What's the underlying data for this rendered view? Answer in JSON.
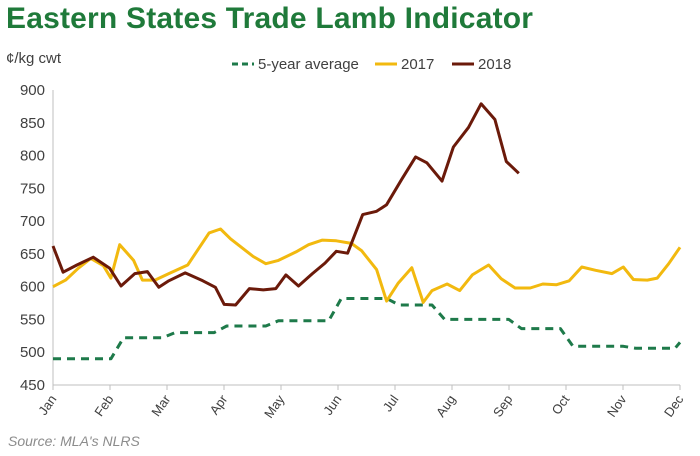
{
  "title": "Eastern States Trade Lamb Indicator",
  "source": "Source: MLA's NLRS",
  "colors": {
    "title": "#1f7a3a",
    "five_year": "#1e7a4a",
    "y2017": "#f2b90f",
    "y2018": "#6b1a0a"
  },
  "chart_data": {
    "type": "line",
    "ylabel": "¢/kg cwt",
    "ylim": [
      450,
      900
    ],
    "yticks": [
      450,
      500,
      550,
      600,
      650,
      700,
      750,
      800,
      850,
      900
    ],
    "xlim": [
      0,
      49.8
    ],
    "x_months": [
      "Jan",
      "Feb",
      "Mar",
      "Apr",
      "May",
      "Jun",
      "Jul",
      "Aug",
      "Sep",
      "Oct",
      "Nov",
      "Dec"
    ],
    "grid": false,
    "legend_position": "top",
    "series": [
      {
        "name": "5-year average",
        "style": "dashed",
        "color": "#1e7a4a",
        "points": [
          [
            0,
            490
          ],
          [
            4.6,
            490
          ],
          [
            5.6,
            522
          ],
          [
            8.7,
            522
          ],
          [
            9.7,
            530
          ],
          [
            12.8,
            530
          ],
          [
            13.8,
            540
          ],
          [
            16.9,
            540
          ],
          [
            17.9,
            548
          ],
          [
            21.9,
            548
          ],
          [
            22.9,
            582
          ],
          [
            26.5,
            582
          ],
          [
            27.5,
            572
          ],
          [
            30.1,
            572
          ],
          [
            31.1,
            550
          ],
          [
            36.2,
            550
          ],
          [
            37.2,
            536
          ],
          [
            40.3,
            536
          ],
          [
            41.3,
            509
          ],
          [
            45.3,
            509
          ],
          [
            46.3,
            506
          ],
          [
            49.4,
            506
          ],
          [
            49.8,
            515
          ]
        ]
      },
      {
        "name": "2017",
        "style": "solid",
        "color": "#f2b90f",
        "points": [
          [
            0,
            600
          ],
          [
            1,
            610
          ],
          [
            2,
            628
          ],
          [
            3,
            643
          ],
          [
            4,
            632
          ],
          [
            4.6,
            613
          ],
          [
            5.3,
            664
          ],
          [
            6.4,
            640
          ],
          [
            7.1,
            610
          ],
          [
            8.1,
            610
          ],
          [
            9.2,
            620
          ],
          [
            10.7,
            633
          ],
          [
            12.4,
            682
          ],
          [
            13.3,
            688
          ],
          [
            14.1,
            673
          ],
          [
            15.9,
            646
          ],
          [
            16.9,
            635
          ],
          [
            17.9,
            640
          ],
          [
            19.3,
            653
          ],
          [
            20.3,
            664
          ],
          [
            21.4,
            671
          ],
          [
            22.5,
            670
          ],
          [
            23.7,
            666
          ],
          [
            24.5,
            655
          ],
          [
            25.7,
            626
          ],
          [
            26.5,
            578
          ],
          [
            27.4,
            605
          ],
          [
            28.5,
            629
          ],
          [
            29.4,
            576
          ],
          [
            30.1,
            594
          ],
          [
            31.3,
            604
          ],
          [
            32.3,
            594
          ],
          [
            33.3,
            618
          ],
          [
            34.6,
            633
          ],
          [
            35.6,
            612
          ],
          [
            36.7,
            598
          ],
          [
            37.9,
            598
          ],
          [
            38.9,
            604
          ],
          [
            40.0,
            603
          ],
          [
            41.0,
            609
          ],
          [
            42.0,
            630
          ],
          [
            43.1,
            625
          ],
          [
            44.4,
            620
          ],
          [
            45.3,
            630
          ],
          [
            46.1,
            611
          ],
          [
            47.2,
            610
          ],
          [
            48.0,
            613
          ],
          [
            48.9,
            635
          ],
          [
            49.8,
            660
          ]
        ]
      },
      {
        "name": "2018",
        "style": "solid",
        "color": "#6b1a0a",
        "points": [
          [
            0,
            662
          ],
          [
            0.8,
            622
          ],
          [
            1.9,
            633
          ],
          [
            3.2,
            645
          ],
          [
            4.5,
            628
          ],
          [
            5.4,
            601
          ],
          [
            6.5,
            620
          ],
          [
            7.5,
            623
          ],
          [
            8.4,
            599
          ],
          [
            9.2,
            609
          ],
          [
            10.5,
            621
          ],
          [
            11.9,
            609
          ],
          [
            12.9,
            599
          ],
          [
            13.6,
            573
          ],
          [
            14.5,
            572
          ],
          [
            15.6,
            597
          ],
          [
            16.7,
            595
          ],
          [
            17.7,
            597
          ],
          [
            18.5,
            618
          ],
          [
            19.5,
            601
          ],
          [
            20.6,
            620
          ],
          [
            21.6,
            636
          ],
          [
            22.5,
            654
          ],
          [
            23.4,
            651
          ],
          [
            24.6,
            710
          ],
          [
            25.7,
            715
          ],
          [
            26.5,
            725
          ],
          [
            27.7,
            764
          ],
          [
            28.8,
            798
          ],
          [
            29.7,
            789
          ],
          [
            30.9,
            761
          ],
          [
            31.8,
            813
          ],
          [
            33.0,
            843
          ],
          [
            34.0,
            879
          ],
          [
            35.1,
            855
          ],
          [
            36.0,
            791
          ],
          [
            37.0,
            773
          ]
        ]
      }
    ]
  }
}
